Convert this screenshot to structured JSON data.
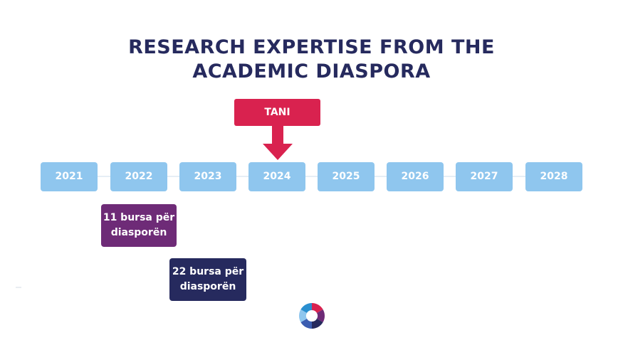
{
  "title": {
    "line1": "RESEARCH EXPERTISE FROM THE",
    "line2": "ACADEMIC DIASPORA"
  },
  "now_marker": {
    "label": "TANI",
    "color": "#d9224f",
    "points_to": "2024"
  },
  "timeline": {
    "years": [
      "2021",
      "2022",
      "2023",
      "2024",
      "2025",
      "2026",
      "2027",
      "2028"
    ],
    "year_color": "#8fc6ee"
  },
  "milestones": [
    {
      "year": "2022",
      "line1": "11 bursa për",
      "line2": "diasporën",
      "color": "#6e2b77"
    },
    {
      "year": "2023",
      "line1": "22 bursa për",
      "line2": "diasporën",
      "color": "#262a5e"
    }
  ],
  "colors": {
    "title": "#262a5e"
  },
  "logo": {
    "icon": "logo-icon"
  }
}
